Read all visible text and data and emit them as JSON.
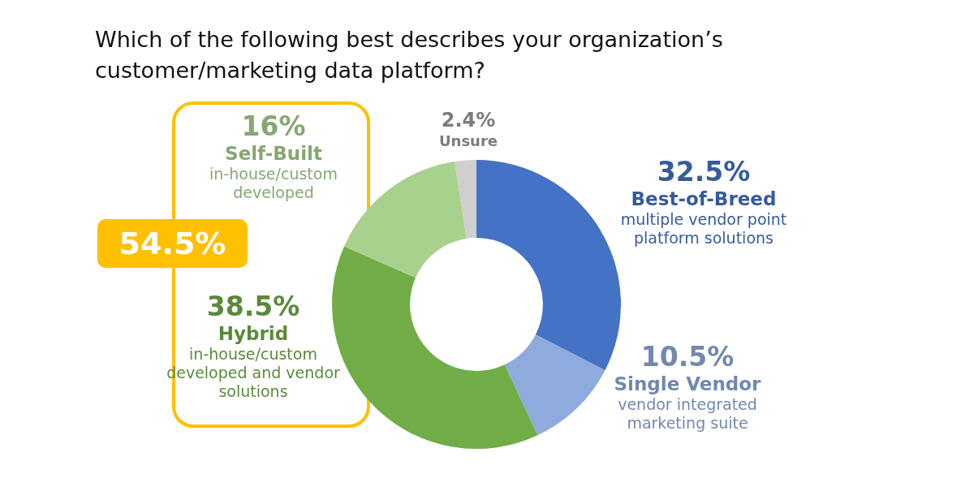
{
  "chart_data": {
    "type": "donut",
    "title": "Which of the following best describes your organization’s customer/marketing data platform?",
    "categories": [
      "Best-of-Breed",
      "Single Vendor",
      "Hybrid",
      "Self-Built",
      "Unsure"
    ],
    "values": [
      32.5,
      10.5,
      38.5,
      16,
      2.4
    ],
    "value_labels": [
      "32.5%",
      "10.5%",
      "38.5%",
      "16%",
      "2.4%"
    ],
    "colors": [
      "#4472c4",
      "#8faadc",
      "#70ad47",
      "#a9d18e",
      "#d0cece"
    ],
    "annotations": [
      "multiple vendor point platform solutions",
      "vendor integrated marketing suite",
      "in-house/custom developed and vendor solutions",
      "in-house/custom developed",
      "54.5%"
    ],
    "legend": false
  }
}
